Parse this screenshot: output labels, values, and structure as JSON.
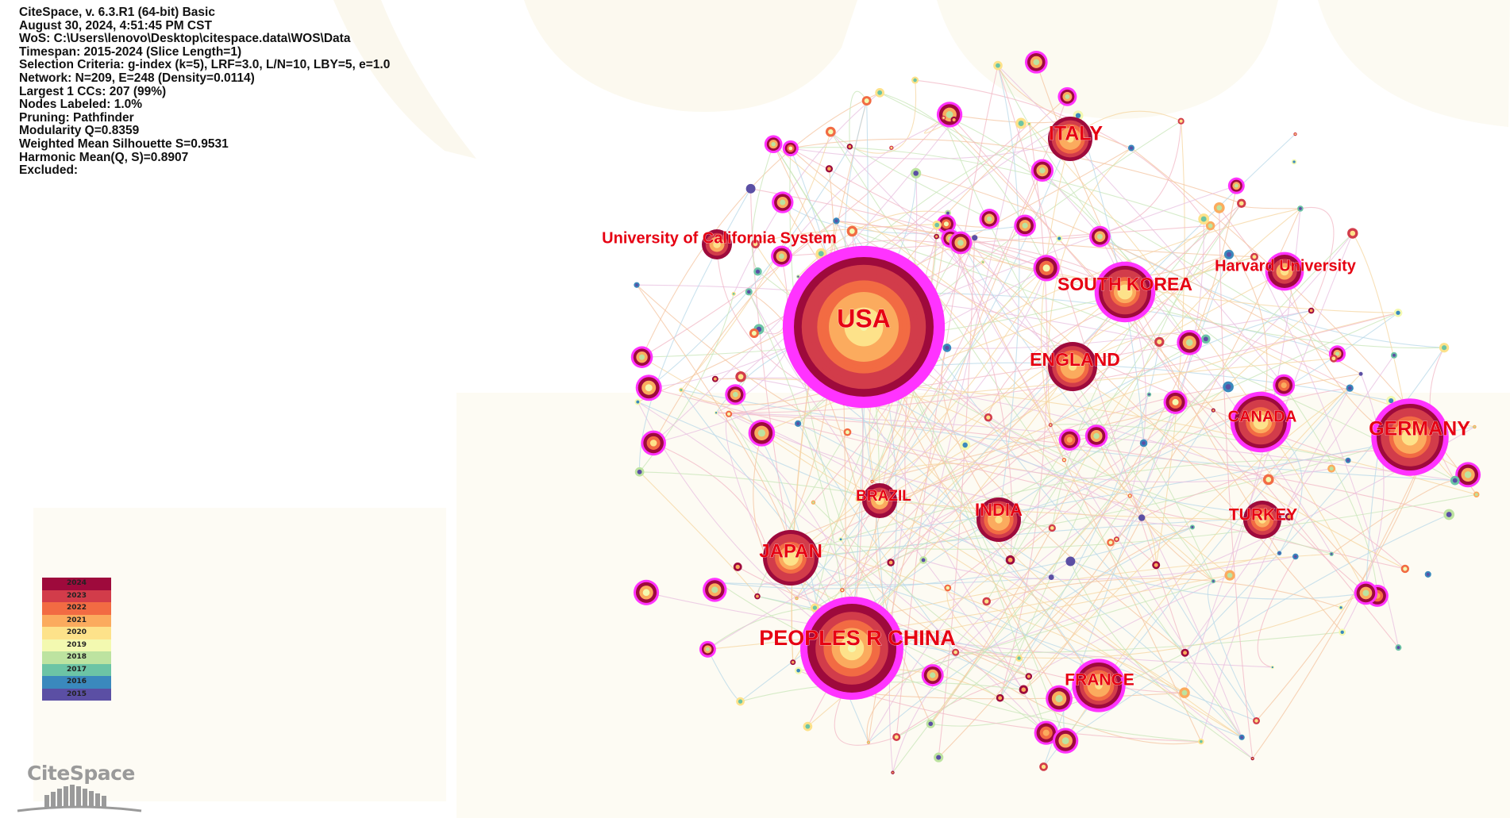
{
  "info_lines": [
    "CiteSpace, v. 6.3.R1 (64-bit) Basic",
    "August 30, 2024, 4:51:45 PM CST",
    "WoS: C:\\Users\\lenovo\\Desktop\\citespace.data\\WOS\\Data",
    "Timespan: 2015-2024 (Slice Length=1)",
    "Selection Criteria: g-index (k=5), LRF=3.0, L/N=10, LBY=5, e=1.0",
    "Network: N=209, E=248 (Density=0.0114)",
    "Largest 1 CCs: 207 (99%)",
    "Nodes Labeled: 1.0%",
    "Pruning: Pathfinder",
    "Modularity Q=0.8359",
    "Weighted Mean Silhouette S=0.9531",
    "Harmonic Mean(Q, S)=0.8907",
    "Excluded:"
  ],
  "legend": [
    {
      "year": "2024",
      "color": "#9e0a3c"
    },
    {
      "year": "2023",
      "color": "#d23c4a"
    },
    {
      "year": "2022",
      "color": "#f26b43"
    },
    {
      "year": "2021",
      "color": "#fbab5e"
    },
    {
      "year": "2020",
      "color": "#fde28a"
    },
    {
      "year": "2019",
      "color": "#f3f9b0"
    },
    {
      "year": "2018",
      "color": "#bde3a0"
    },
    {
      "year": "2017",
      "color": "#6cc4a5"
    },
    {
      "year": "2016",
      "color": "#3a89bd"
    },
    {
      "year": "2015",
      "color": "#5b4fa4"
    }
  ],
  "logo_text": "CiteSpace",
  "centrality_color": "#ff33ff",
  "label_color": "#e60012",
  "nodes": [
    {
      "id": "usa",
      "label": "USA",
      "size": 88,
      "ring": true
    },
    {
      "id": "china",
      "label": "PEOPLES R CHINA",
      "size": 56,
      "ring": true
    },
    {
      "id": "germany",
      "label": "GERMANY",
      "size": 42,
      "ring": true
    },
    {
      "id": "italy",
      "label": "ITALY",
      "size": 28,
      "ring": false
    },
    {
      "id": "skorea",
      "label": "SOUTH KOREA",
      "size": 33,
      "ring": true
    },
    {
      "id": "england",
      "label": "ENGLAND",
      "size": 31,
      "ring": false
    },
    {
      "id": "japan",
      "label": "JAPAN",
      "size": 35,
      "ring": false
    },
    {
      "id": "india",
      "label": "INDIA",
      "size": 28,
      "ring": false
    },
    {
      "id": "canada",
      "label": "CANADA",
      "size": 33,
      "ring": true
    },
    {
      "id": "turkey",
      "label": "TURKEY",
      "size": 24,
      "ring": false
    },
    {
      "id": "france",
      "label": "FRANCE",
      "size": 29,
      "ring": true
    },
    {
      "id": "brazil",
      "label": "BRAZIL",
      "size": 22,
      "ring": false
    },
    {
      "id": "ucs",
      "label": "University of California System",
      "size": 19,
      "ring": false
    },
    {
      "id": "harvard",
      "label": "Harvard University",
      "size": 21,
      "ring": true
    }
  ]
}
